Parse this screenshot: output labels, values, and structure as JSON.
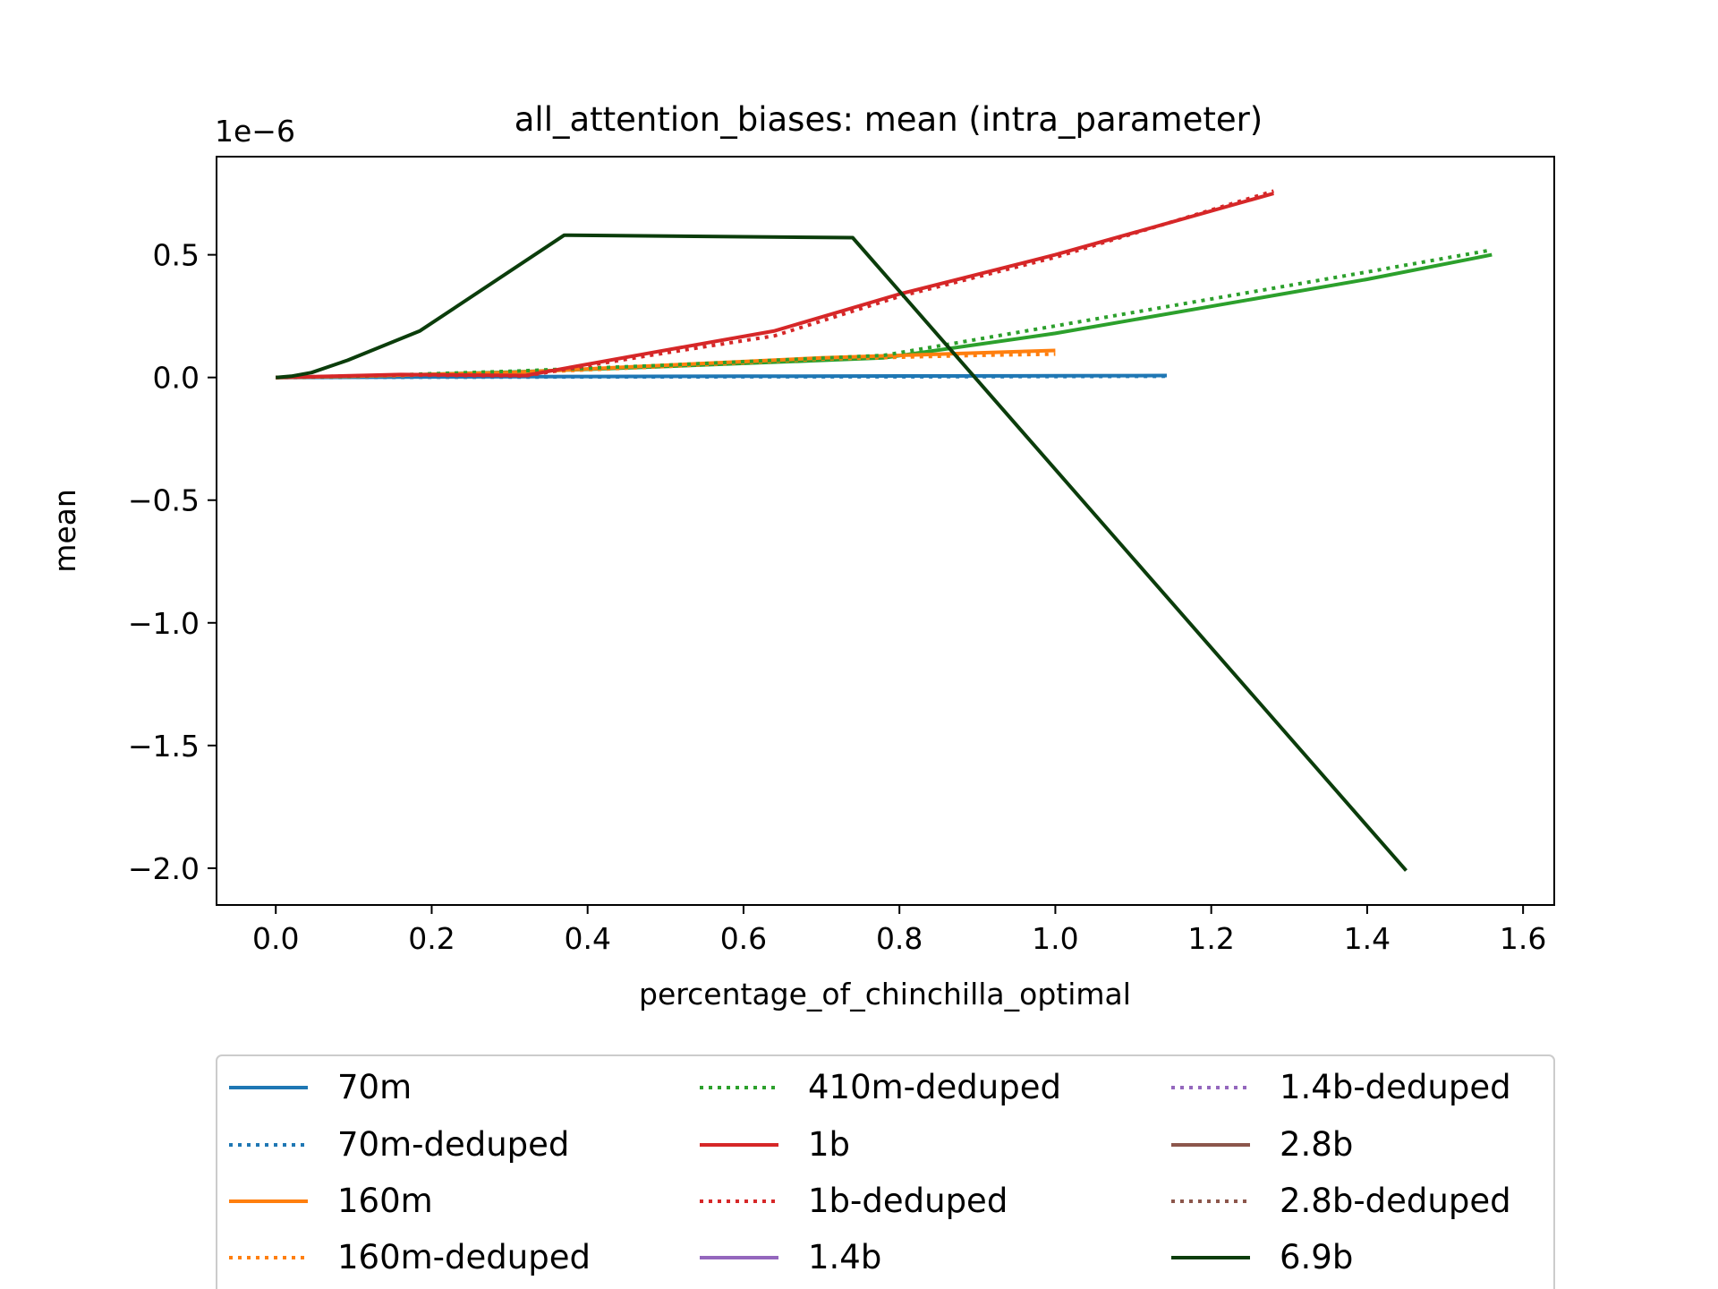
{
  "chart_data": {
    "type": "line",
    "title": "all_attention_biases: mean (intra_parameter)",
    "xlabel": "percentage_of_chinchilla_optimal",
    "ylabel": "mean",
    "y_scale_label": "1e−6",
    "xlim": [
      -0.076,
      1.64
    ],
    "ylim": [
      -2.15,
      0.9
    ],
    "x_ticks": [
      0.0,
      0.2,
      0.4,
      0.6,
      0.8,
      1.0,
      1.2,
      1.4,
      1.6
    ],
    "x_tick_labels": [
      "0.0",
      "0.2",
      "0.4",
      "0.6",
      "0.8",
      "1.0",
      "1.2",
      "1.4",
      "1.6"
    ],
    "y_ticks": [
      0.5,
      0.0,
      -0.5,
      -1.0,
      -1.5,
      -2.0
    ],
    "y_tick_labels": [
      "0.5",
      "0.0",
      "−0.5",
      "−1.0",
      "−1.5",
      "−2.0"
    ],
    "grid": false,
    "legend_position": "bottom-outside",
    "legend_columns": 3,
    "series": [
      {
        "name": "70m",
        "color": "#1f77b4",
        "style": "solid",
        "x": [
          0.0,
          0.2,
          0.4,
          0.6,
          0.8,
          1.0,
          1.143
        ],
        "y": [
          0.0,
          0.002,
          0.004,
          0.005,
          0.006,
          0.007,
          0.008
        ]
      },
      {
        "name": "70m-deduped",
        "color": "#1f77b4",
        "style": "dotted",
        "x": [
          0.0,
          0.2,
          0.4,
          0.6,
          0.8,
          1.0,
          1.143
        ],
        "y": [
          0.0,
          0.001,
          0.002,
          0.003,
          0.003,
          0.004,
          0.005
        ]
      },
      {
        "name": "160m",
        "color": "#ff7f0e",
        "style": "solid",
        "x": [
          0.0,
          0.1,
          0.3,
          0.5,
          0.7,
          0.9,
          1.0
        ],
        "y": [
          0.0,
          0.005,
          0.02,
          0.05,
          0.08,
          0.1,
          0.11
        ]
      },
      {
        "name": "160m-deduped",
        "color": "#ff7f0e",
        "style": "dotted",
        "x": [
          0.0,
          0.1,
          0.3,
          0.5,
          0.7,
          0.9,
          1.0
        ],
        "y": [
          0.0,
          0.004,
          0.018,
          0.045,
          0.075,
          0.09,
          0.095
        ]
      },
      {
        "name": "410m-deduped",
        "color": "#2ca02c",
        "style": "dotted",
        "x": [
          0.0,
          0.1,
          0.3,
          0.5,
          0.78,
          1.0,
          1.2,
          1.4,
          1.56
        ],
        "y": [
          0.0,
          0.005,
          0.025,
          0.05,
          0.09,
          0.21,
          0.32,
          0.43,
          0.52
        ]
      },
      {
        "name": "1b",
        "color": "#d62728",
        "style": "solid",
        "x": [
          0.0,
          0.16,
          0.32,
          0.48,
          0.64,
          0.8,
          1.0,
          1.28
        ],
        "y": [
          0.0,
          0.012,
          0.008,
          0.1,
          0.19,
          0.34,
          0.5,
          0.75
        ]
      },
      {
        "name": "1b-deduped",
        "color": "#d62728",
        "style": "dotted",
        "x": [
          0.0,
          0.16,
          0.32,
          0.48,
          0.64,
          0.8,
          1.0,
          1.28
        ],
        "y": [
          0.0,
          0.01,
          0.006,
          0.09,
          0.17,
          0.33,
          0.49,
          0.76
        ]
      },
      {
        "name": "1.4b",
        "color": "#9467bd",
        "style": "solid",
        "x": [],
        "y": []
      },
      {
        "name": "1.4b-deduped",
        "color": "#9467bd",
        "style": "dotted",
        "x": [],
        "y": []
      },
      {
        "name": "2.8b",
        "color": "#8c564b",
        "style": "solid",
        "x": [],
        "y": []
      },
      {
        "name": "2.8b-deduped",
        "color": "#8c564b",
        "style": "dotted",
        "x": [],
        "y": []
      },
      {
        "name": "6.9b",
        "color": "#0b3d0b",
        "style": "solid",
        "x": [
          0.0,
          0.02,
          0.046,
          0.092,
          0.185,
          0.37,
          0.74,
          1.45
        ],
        "y": [
          0.0,
          0.005,
          0.02,
          0.07,
          0.19,
          0.58,
          0.57,
          -2.01
        ]
      }
    ],
    "extra_series": [
      {
        "color": "#2ca02c",
        "style": "solid",
        "x": [
          0.0,
          0.1,
          0.3,
          0.5,
          0.78,
          1.0,
          1.2,
          1.4,
          1.56
        ],
        "y": [
          0.0,
          0.004,
          0.022,
          0.045,
          0.08,
          0.18,
          0.29,
          0.4,
          0.5
        ]
      }
    ]
  }
}
